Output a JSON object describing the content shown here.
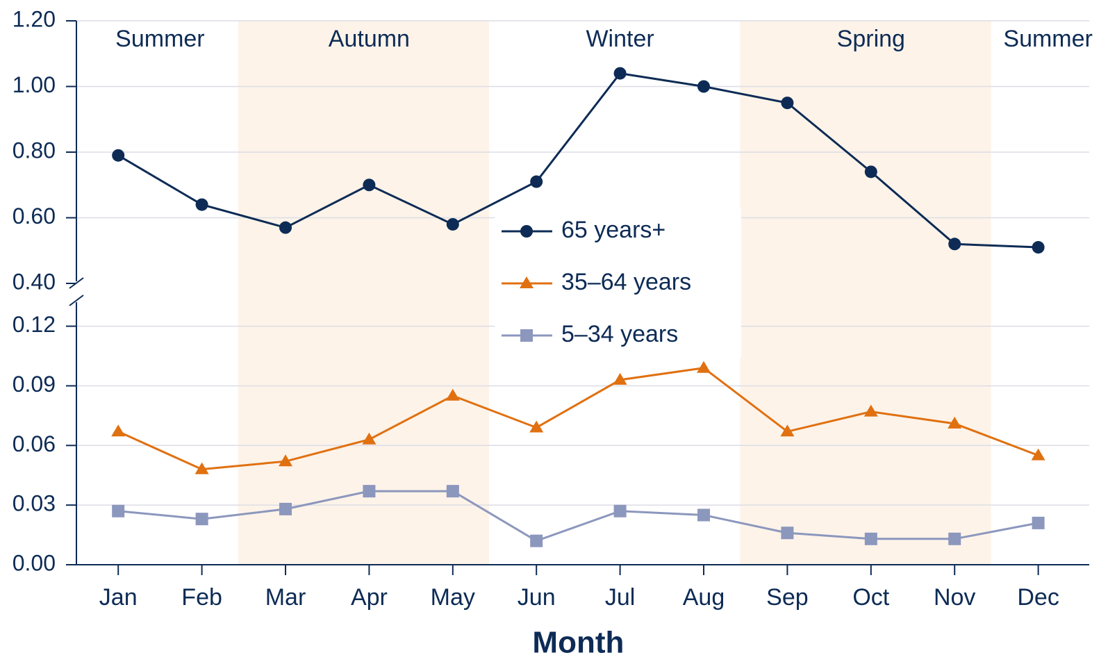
{
  "chart_data": [
    {
      "type": "line",
      "annotations": [
        "Summer",
        "Autumn",
        "Winter",
        "Spring",
        "Summer"
      ],
      "series": [
        {
          "name": "65 years+",
          "color": "#0d2b55",
          "marker": "circle",
          "values": [
            0.79,
            0.64,
            0.57,
            0.7,
            0.58,
            0.71,
            1.04,
            1.0,
            0.95,
            0.74,
            0.52,
            0.51
          ]
        }
      ],
      "ylim": [
        0.4,
        1.2
      ],
      "yticks": [
        {
          "value": 0.4,
          "label": "0.40"
        },
        {
          "value": 0.6,
          "label": "0.60"
        },
        {
          "value": 0.8,
          "label": "0.80"
        },
        {
          "value": 1.0,
          "label": "1.00"
        },
        {
          "value": 1.2,
          "label": "1.20"
        }
      ],
      "grid": true
    },
    {
      "type": "line",
      "categories": [
        "Jan",
        "Feb",
        "Mar",
        "Apr",
        "May",
        "Jun",
        "Jul",
        "Aug",
        "Sep",
        "Oct",
        "Nov",
        "Dec"
      ],
      "x_label": "Month",
      "series": [
        {
          "name": "35–64 years",
          "color": "#e07010",
          "marker": "triangle",
          "values": [
            0.067,
            0.048,
            0.052,
            0.063,
            0.085,
            0.069,
            0.093,
            0.099,
            0.067,
            0.077,
            0.071,
            0.055
          ]
        },
        {
          "name": "5–34 years",
          "color": "#8c97bd",
          "marker": "square",
          "values": [
            0.027,
            0.023,
            0.028,
            0.037,
            0.037,
            0.012,
            0.027,
            0.025,
            0.016,
            0.013,
            0.013,
            0.021
          ]
        }
      ],
      "ylim": [
        0,
        0.13
      ],
      "yticks": [
        {
          "value": 0,
          "label": "0.00"
        },
        0.03,
        0.06,
        0.09,
        0.12
      ],
      "grid": true
    }
  ]
}
